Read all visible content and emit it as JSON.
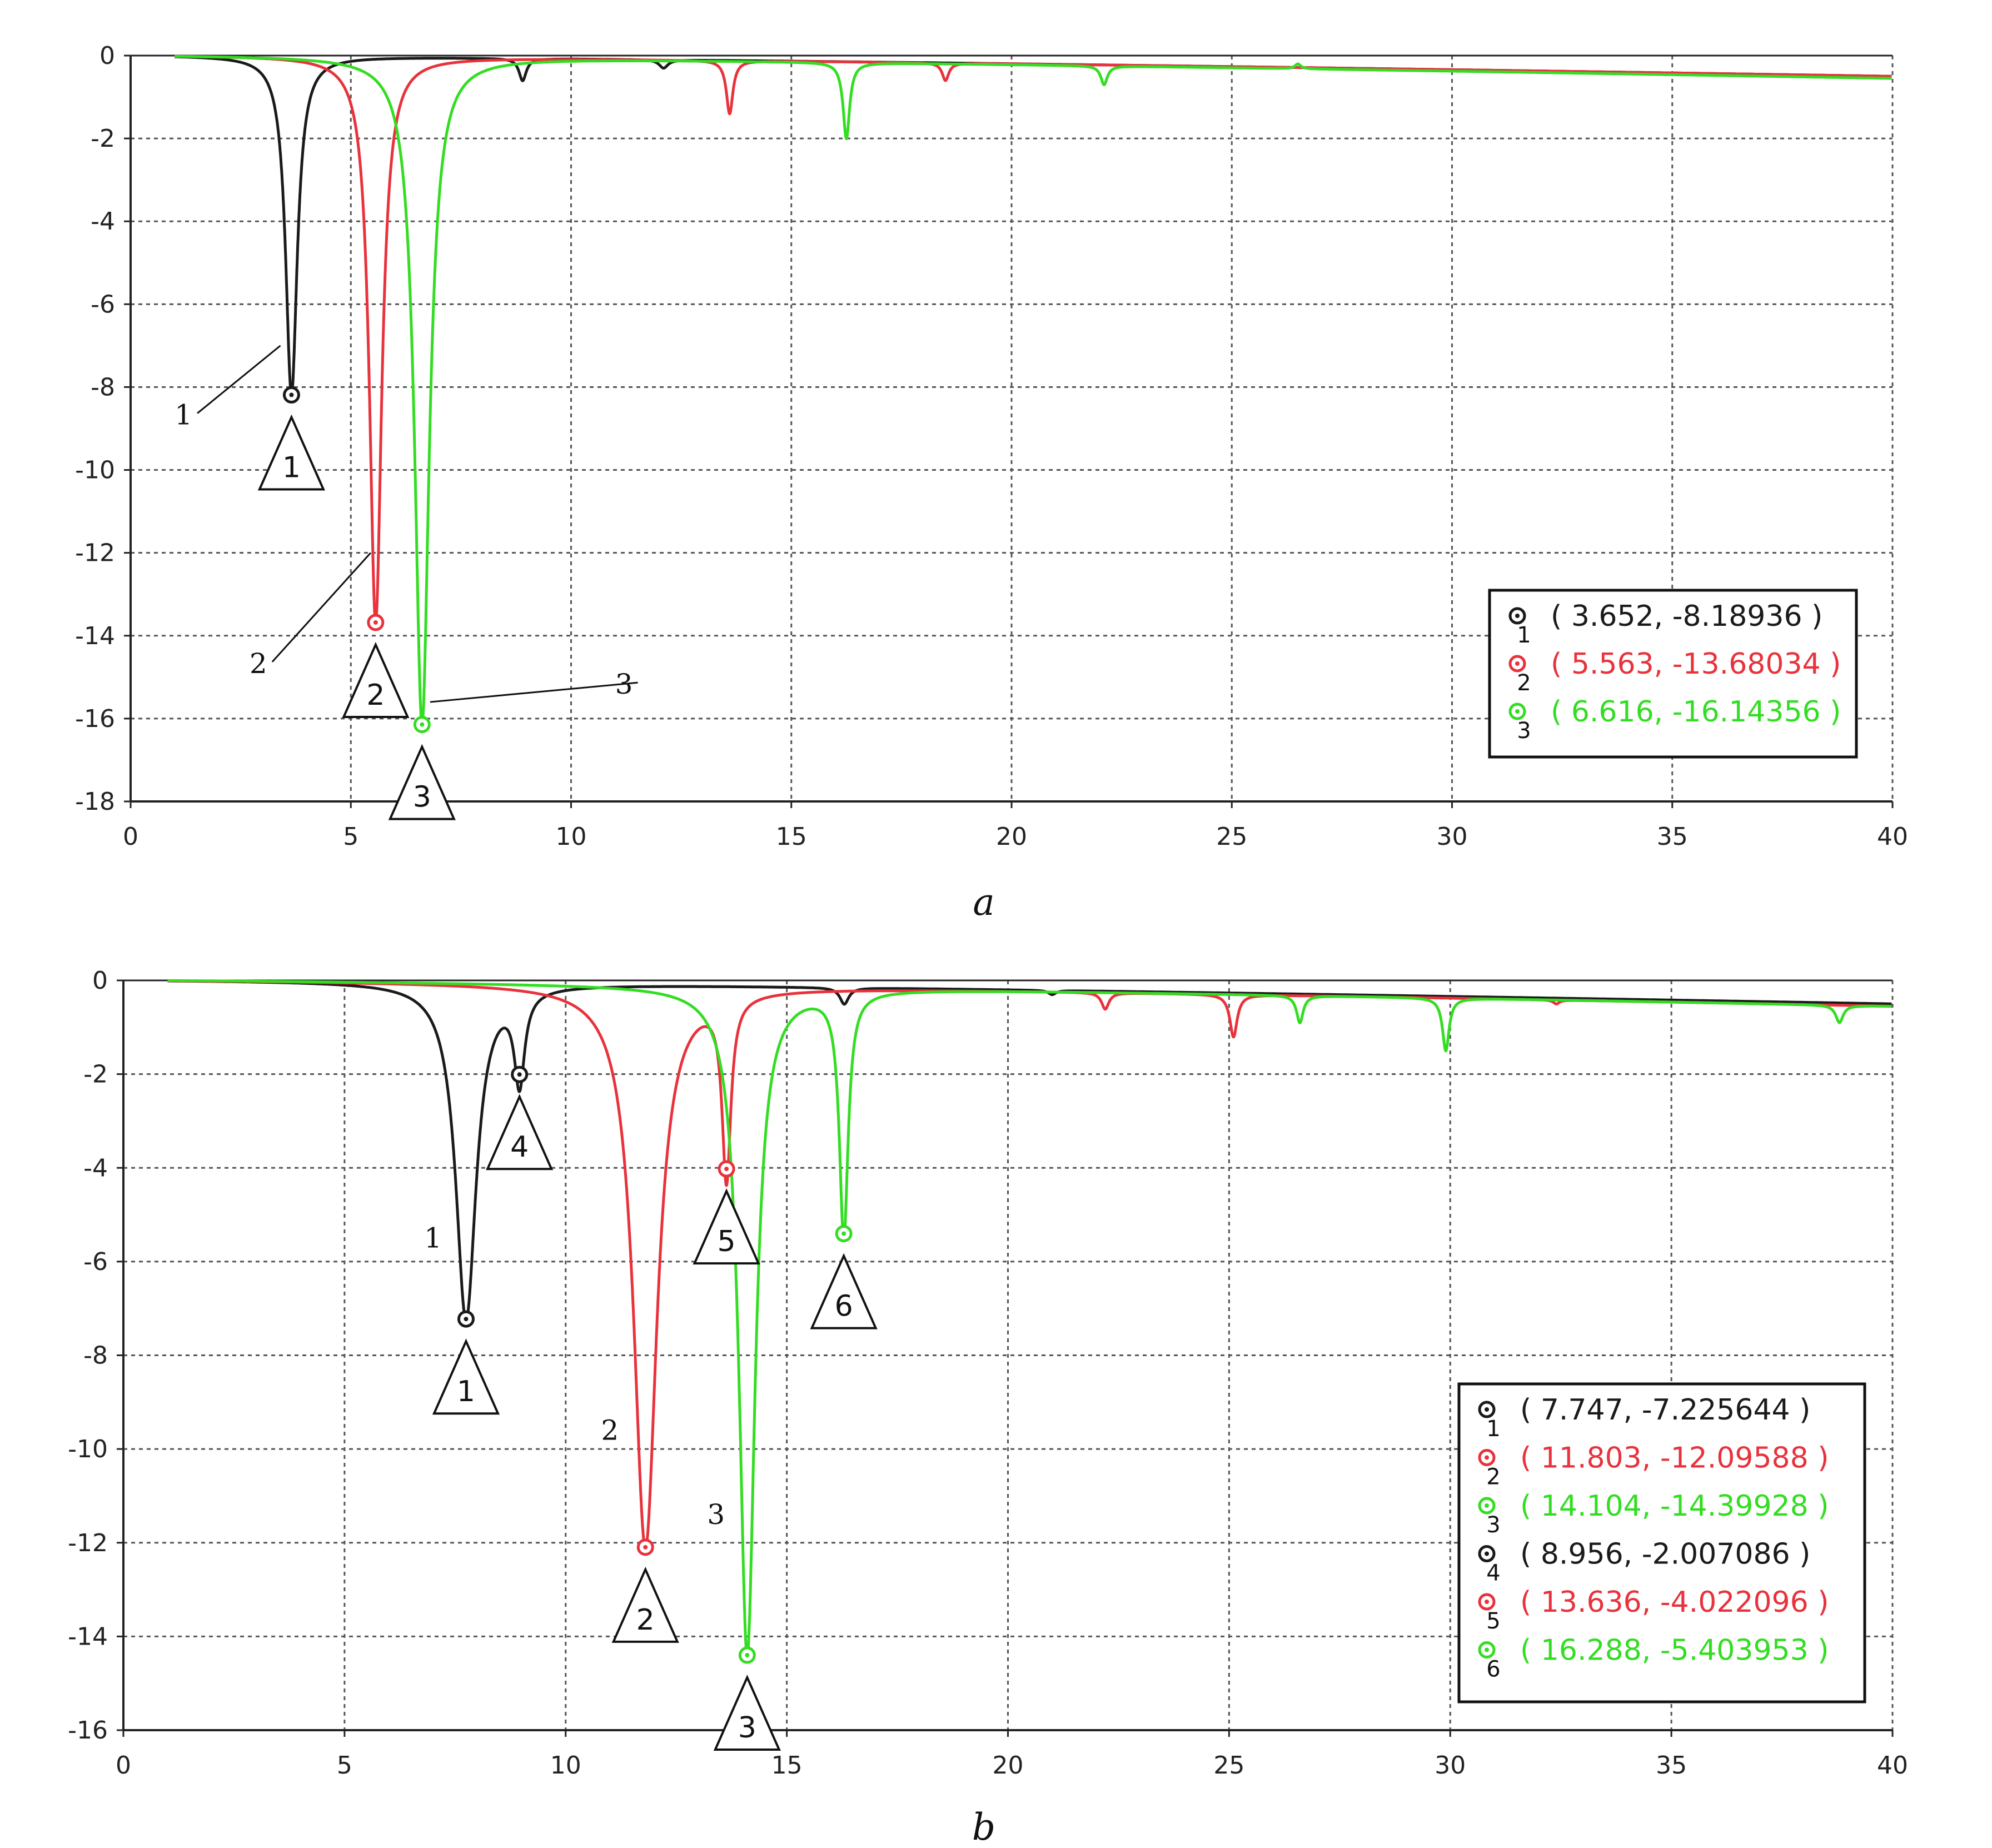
{
  "figure": {
    "panels": [
      "a",
      "b"
    ]
  },
  "chart_data": [
    {
      "type": "line",
      "panel_label": "a",
      "xlabel": "",
      "ylabel": "",
      "xlim": [
        0,
        40
      ],
      "ylim": [
        -18,
        0
      ],
      "x_ticks": [
        "0",
        "5",
        "10",
        "15",
        "20",
        "25",
        "30",
        "35",
        "40"
      ],
      "y_ticks": [
        "0",
        "-2",
        "-4",
        "-6",
        "-8",
        "-10",
        "-12",
        "-14",
        "-16",
        "-18"
      ],
      "grid": true,
      "legend_position": "lower-right",
      "colors": {
        "black": "#1a1a1a",
        "red": "#e8323c",
        "green": "#33dd22"
      },
      "series": [
        {
          "color": "#1a1a1a",
          "baseline_end": -0.5,
          "dips": [
            {
              "x": 3.652,
              "y": -8.18936,
              "w": 0.16
            },
            {
              "x": 8.9,
              "y": -0.6,
              "w": 0.1
            },
            {
              "x": 12.1,
              "y": -0.3,
              "w": 0.12
            }
          ]
        },
        {
          "color": "#e8323c",
          "baseline_end": -0.5,
          "dips": [
            {
              "x": 5.563,
              "y": -13.68034,
              "w": 0.17
            },
            {
              "x": 13.6,
              "y": -1.4,
              "w": 0.09
            },
            {
              "x": 18.5,
              "y": -0.6,
              "w": 0.09
            }
          ]
        },
        {
          "color": "#33dd22",
          "baseline_end": -0.55,
          "dips": [
            {
              "x": 6.616,
              "y": -16.14356,
              "w": 0.2
            },
            {
              "x": 16.25,
              "y": -2.0,
              "w": 0.09
            },
            {
              "x": 22.1,
              "y": -0.7,
              "w": 0.09
            },
            {
              "x": 26.5,
              "y": -0.2,
              "w": 0.08
            }
          ]
        }
      ],
      "markers": [
        {
          "id": "1",
          "x": 3.652,
          "y": -8.18936,
          "color": "#1a1a1a",
          "label": "( 3.652, -8.18936 )"
        },
        {
          "id": "2",
          "x": 5.563,
          "y": -13.68034,
          "color": "#e8323c",
          "label": "( 5.563, -13.68034 )"
        },
        {
          "id": "3",
          "x": 6.616,
          "y": -16.14356,
          "color": "#33dd22",
          "label": "( 6.616, -16.14356 )"
        }
      ],
      "callouts": [
        {
          "text": "1",
          "x": 1.2,
          "y": -8.9,
          "to_x": 3.4,
          "to_y": -7.0
        },
        {
          "text": "2",
          "x": 2.9,
          "y": -14.9,
          "to_x": 5.45,
          "to_y": -12.0
        },
        {
          "text": "3",
          "x": 11.2,
          "y": -15.4,
          "to_x": 6.8,
          "to_y": -15.6
        }
      ]
    },
    {
      "type": "line",
      "panel_label": "b",
      "xlabel": "",
      "ylabel": "",
      "xlim": [
        0,
        40
      ],
      "ylim": [
        -16,
        0
      ],
      "x_ticks": [
        "0",
        "5",
        "10",
        "15",
        "20",
        "25",
        "30",
        "35",
        "40"
      ],
      "y_ticks": [
        "0",
        "-2",
        "-4",
        "-6",
        "-8",
        "-10",
        "-12",
        "-14",
        "-16"
      ],
      "grid": true,
      "legend_position": "lower-right",
      "colors": {
        "black": "#1a1a1a",
        "red": "#e8323c",
        "green": "#33dd22"
      },
      "series": [
        {
          "color": "#1a1a1a",
          "baseline_end": -0.5,
          "dips": [
            {
              "x": 7.747,
              "y": -7.225644,
              "w": 0.28
            },
            {
              "x": 8.956,
              "y": -2.007086,
              "w": 0.14
            },
            {
              "x": 16.3,
              "y": -0.5,
              "w": 0.12
            },
            {
              "x": 21.0,
              "y": -0.3,
              "w": 0.1
            }
          ]
        },
        {
          "color": "#e8323c",
          "baseline_end": -0.55,
          "dips": [
            {
              "x": 11.803,
              "y": -12.09588,
              "w": 0.32
            },
            {
              "x": 13.636,
              "y": -4.022096,
              "w": 0.12
            },
            {
              "x": 22.2,
              "y": -0.6,
              "w": 0.1
            },
            {
              "x": 25.1,
              "y": -1.2,
              "w": 0.1
            },
            {
              "x": 32.4,
              "y": -0.5,
              "w": 0.08
            }
          ]
        },
        {
          "color": "#33dd22",
          "baseline_end": -0.55,
          "dips": [
            {
              "x": 14.104,
              "y": -14.39928,
              "w": 0.22
            },
            {
              "x": 16.288,
              "y": -5.403953,
              "w": 0.12
            },
            {
              "x": 26.6,
              "y": -0.9,
              "w": 0.09
            },
            {
              "x": 29.9,
              "y": -1.5,
              "w": 0.09
            },
            {
              "x": 38.8,
              "y": -0.9,
              "w": 0.1
            }
          ]
        }
      ],
      "markers": [
        {
          "id": "1",
          "x": 7.747,
          "y": -7.225644,
          "color": "#1a1a1a",
          "label": "( 7.747, -7.225644 )"
        },
        {
          "id": "2",
          "x": 11.803,
          "y": -12.09588,
          "color": "#e8323c",
          "label": "( 11.803, -12.09588 )"
        },
        {
          "id": "3",
          "x": 14.104,
          "y": -14.39928,
          "color": "#33dd22",
          "label": "( 14.104, -14.39928 )"
        },
        {
          "id": "4",
          "x": 8.956,
          "y": -2.007086,
          "color": "#1a1a1a",
          "label": "( 8.956, -2.007086 )"
        },
        {
          "id": "5",
          "x": 13.636,
          "y": -4.022096,
          "color": "#e8323c",
          "label": "( 13.636, -4.022096 )"
        },
        {
          "id": "6",
          "x": 16.288,
          "y": -5.403953,
          "color": "#33dd22",
          "label": "( 16.288, -5.403953 )"
        }
      ],
      "callouts": [
        {
          "text": "1",
          "x": 7.0,
          "y": -5.7
        },
        {
          "text": "2",
          "x": 11.0,
          "y": -9.8
        },
        {
          "text": "3",
          "x": 13.4,
          "y": -11.6
        }
      ]
    }
  ]
}
